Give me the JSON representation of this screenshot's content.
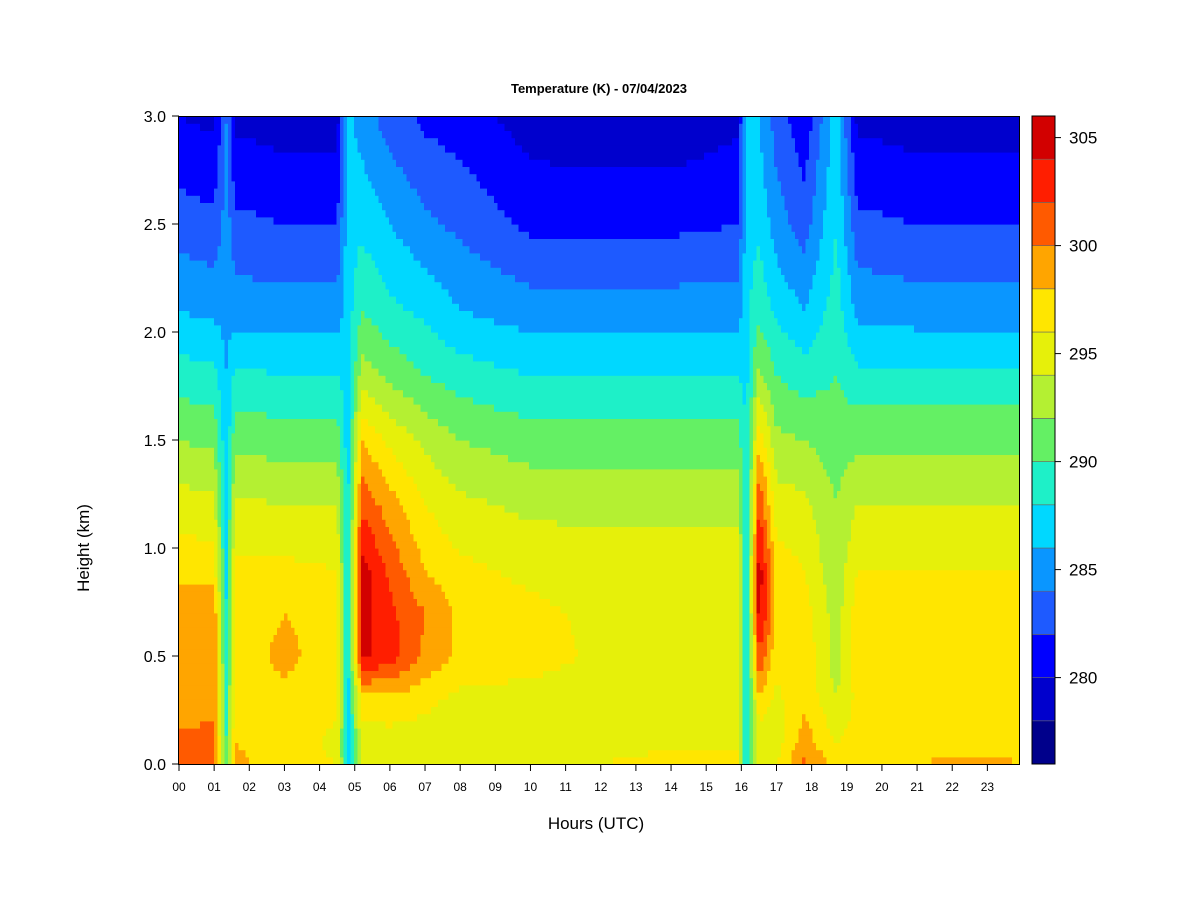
{
  "chart_data": {
    "type": "heatmap",
    "title": "Temperature (K) - 07/04/2023",
    "xlabel": "Hours (UTC)",
    "ylabel": "Height (km)",
    "xlim": [
      0,
      23.9
    ],
    "ylim": [
      0.0,
      3.0
    ],
    "x_ticks": [
      "00",
      "01",
      "02",
      "03",
      "04",
      "05",
      "06",
      "07",
      "08",
      "09",
      "10",
      "11",
      "12",
      "13",
      "14",
      "15",
      "16",
      "17",
      "18",
      "19",
      "20",
      "21",
      "22",
      "23"
    ],
    "y_ticks": [
      "0.0",
      "0.5",
      "1.0",
      "1.5",
      "2.0",
      "2.5",
      "3.0"
    ],
    "colorbar": {
      "vmin": 276,
      "vmax": 306,
      "levels": [
        276,
        278,
        280,
        282,
        284,
        286,
        288,
        290,
        292,
        294,
        296,
        298,
        300,
        302,
        304,
        306
      ],
      "colors": [
        "#00008b",
        "#0000cd",
        "#0000ff",
        "#1e5aff",
        "#0a96ff",
        "#00d8ff",
        "#1ef0c8",
        "#64f064",
        "#b4f032",
        "#e6f00a",
        "#ffe600",
        "#ffa500",
        "#ff5a00",
        "#ff1e00",
        "#d20000",
        "#8b0000"
      ],
      "tick_labels": [
        "280",
        "285",
        "290",
        "295",
        "300",
        "305"
      ]
    },
    "profile_heights_km": [
      0.0,
      0.1,
      0.3,
      0.5,
      0.7,
      0.9,
      1.2,
      1.5,
      1.8,
      2.1,
      2.5,
      3.0
    ],
    "profiles": [
      {
        "hour": 0.0,
        "temps_K": [
          301.5,
          300.5,
          299.0,
          299.5,
          299.0,
          297.5,
          295.0,
          292.0,
          289.0,
          286.0,
          283.0,
          280.0
        ]
      },
      {
        "hour": 1.0,
        "temps_K": [
          301.5,
          300.5,
          299.5,
          300.0,
          299.5,
          297.0,
          294.5,
          291.5,
          288.5,
          285.5,
          282.5,
          279.5
        ]
      },
      {
        "hour": 1.35,
        "temps_K": [
          290.0,
          290.0,
          289.0,
          288.5,
          288.0,
          287.5,
          287.0,
          286.5,
          286.0,
          285.5,
          285.0,
          284.0
        ]
      },
      {
        "hour": 1.6,
        "temps_K": [
          298.5,
          298.0,
          297.5,
          297.0,
          297.0,
          296.5,
          294.5,
          291.5,
          288.5,
          285.0,
          282.5,
          279.5
        ]
      },
      {
        "hour": 3.0,
        "temps_K": [
          297.0,
          297.0,
          297.5,
          298.5,
          298.0,
          296.5,
          294.0,
          291.0,
          288.0,
          285.0,
          282.0,
          279.0
        ]
      },
      {
        "hour": 4.5,
        "temps_K": [
          296.0,
          295.5,
          296.5,
          297.0,
          297.0,
          296.0,
          294.0,
          291.0,
          288.0,
          285.0,
          282.0,
          279.0
        ]
      },
      {
        "hour": 4.8,
        "temps_K": [
          287.0,
          287.0,
          287.0,
          287.0,
          287.0,
          287.0,
          287.0,
          287.0,
          287.0,
          287.0,
          287.0,
          286.5
        ]
      },
      {
        "hour": 5.2,
        "temps_K": [
          295.5,
          295.0,
          297.0,
          304.5,
          305.0,
          305.0,
          301.5,
          298.0,
          293.0,
          290.0,
          287.5,
          285.0
        ]
      },
      {
        "hour": 6.0,
        "temps_K": [
          295.0,
          295.0,
          297.5,
          303.0,
          302.5,
          301.5,
          299.0,
          295.5,
          291.5,
          288.5,
          286.0,
          283.0
        ]
      },
      {
        "hour": 7.0,
        "temps_K": [
          295.0,
          295.0,
          296.5,
          299.5,
          300.0,
          298.0,
          296.0,
          293.5,
          290.0,
          287.5,
          284.5,
          281.5
        ]
      },
      {
        "hour": 8.0,
        "temps_K": [
          295.0,
          295.0,
          295.5,
          297.5,
          297.5,
          296.5,
          294.5,
          292.0,
          289.0,
          286.0,
          283.5,
          281.0
        ]
      },
      {
        "hour": 10.0,
        "temps_K": [
          295.0,
          295.0,
          295.0,
          297.0,
          296.5,
          295.5,
          293.5,
          291.0,
          288.0,
          285.0,
          281.5,
          279.0
        ]
      },
      {
        "hour": 12.0,
        "temps_K": [
          296.0,
          295.0,
          295.0,
          295.5,
          295.5,
          295.0,
          293.5,
          291.0,
          288.0,
          285.0,
          281.5,
          278.5
        ]
      },
      {
        "hour": 14.0,
        "temps_K": [
          297.0,
          295.5,
          295.0,
          295.5,
          295.5,
          295.0,
          293.5,
          291.0,
          288.0,
          285.0,
          281.5,
          278.5
        ]
      },
      {
        "hour": 15.9,
        "temps_K": [
          296.5,
          295.5,
          295.0,
          295.5,
          295.5,
          295.0,
          293.5,
          291.0,
          288.0,
          285.0,
          282.0,
          279.5
        ]
      },
      {
        "hour": 16.15,
        "temps_K": [
          287.5,
          287.5,
          287.5,
          287.5,
          287.5,
          287.5,
          287.5,
          287.5,
          287.5,
          287.5,
          287.0,
          286.5
        ]
      },
      {
        "hour": 16.5,
        "temps_K": [
          294.5,
          294.5,
          297.5,
          302.0,
          305.0,
          305.5,
          302.0,
          297.5,
          292.5,
          289.5,
          287.5,
          286.0
        ]
      },
      {
        "hour": 17.0,
        "temps_K": [
          296.0,
          295.0,
          295.5,
          296.5,
          297.5,
          297.0,
          295.0,
          292.5,
          290.0,
          287.5,
          285.0,
          283.0
        ]
      },
      {
        "hour": 17.8,
        "temps_K": [
          300.5,
          299.0,
          297.5,
          297.5,
          297.0,
          296.0,
          294.5,
          292.0,
          289.0,
          286.0,
          283.0,
          280.5
        ]
      },
      {
        "hour": 18.7,
        "temps_K": [
          297.0,
          296.0,
          294.0,
          293.0,
          293.0,
          292.5,
          292.0,
          291.0,
          290.0,
          289.0,
          288.0,
          287.0
        ]
      },
      {
        "hour": 19.3,
        "temps_K": [
          297.5,
          297.0,
          296.5,
          297.0,
          297.0,
          296.0,
          294.0,
          291.5,
          288.5,
          285.5,
          282.5,
          279.5
        ]
      },
      {
        "hour": 21.0,
        "temps_K": [
          298.0,
          297.5,
          297.0,
          297.0,
          297.0,
          296.0,
          294.0,
          291.5,
          288.5,
          285.0,
          282.0,
          279.0
        ]
      },
      {
        "hour": 23.0,
        "temps_K": [
          298.5,
          297.5,
          297.0,
          297.0,
          297.0,
          296.0,
          294.0,
          291.5,
          288.5,
          285.0,
          282.0,
          279.0
        ]
      },
      {
        "hour": 23.9,
        "temps_K": [
          298.0,
          297.5,
          297.0,
          297.0,
          297.0,
          296.0,
          294.0,
          291.5,
          288.5,
          285.0,
          282.0,
          279.0
        ]
      }
    ]
  }
}
